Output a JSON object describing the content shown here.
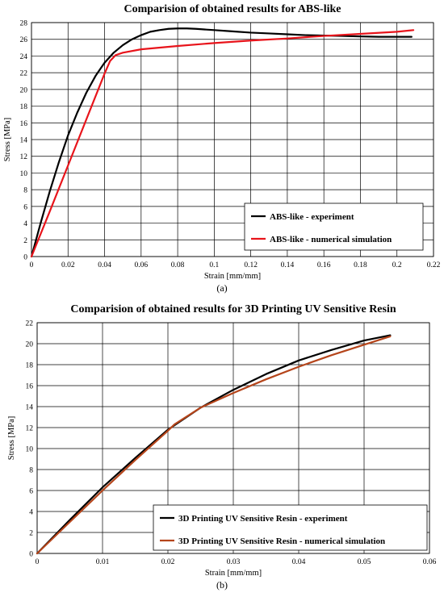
{
  "chart_data": [
    {
      "type": "line",
      "title": "Comparision of obtained results for ABS-like",
      "xlabel": "Strain [mm/mm]",
      "ylabel": "Stress [MPa]",
      "panel_label": "(a)",
      "xlim": [
        0,
        0.22
      ],
      "ylim": [
        0,
        28
      ],
      "xticks": [
        0,
        0.02,
        0.04,
        0.06,
        0.08,
        0.1,
        0.12,
        0.14,
        0.16,
        0.18,
        0.2,
        0.22
      ],
      "yticks": [
        0,
        2,
        4,
        6,
        8,
        10,
        12,
        14,
        16,
        18,
        20,
        22,
        24,
        26,
        28
      ],
      "xtick_labels": [
        "0",
        "0.02",
        "0.04",
        "0.06",
        "0.08",
        "0.1",
        "0.12",
        "0.14",
        "0.16",
        "0.18",
        "0.2",
        "0.22"
      ],
      "ytick_labels": [
        "0",
        "2",
        "4",
        "6",
        "8",
        "10",
        "12",
        "14",
        "16",
        "18",
        "20",
        "22",
        "24",
        "26",
        "28"
      ],
      "grid": true,
      "legend_position": "bottom-right",
      "series": [
        {
          "name": "ABS-like - experiment",
          "color": "#000000",
          "x": [
            0,
            0.005,
            0.01,
            0.015,
            0.02,
            0.025,
            0.03,
            0.035,
            0.04,
            0.045,
            0.05,
            0.055,
            0.06,
            0.065,
            0.07,
            0.075,
            0.08,
            0.085,
            0.09,
            0.1,
            0.11,
            0.12,
            0.13,
            0.14,
            0.15,
            0.16,
            0.17,
            0.18,
            0.19,
            0.2,
            0.208
          ],
          "y": [
            0,
            4.0,
            7.8,
            11.3,
            14.5,
            17.2,
            19.6,
            21.6,
            23.2,
            24.4,
            25.3,
            26.0,
            26.5,
            26.9,
            27.1,
            27.25,
            27.3,
            27.3,
            27.25,
            27.1,
            26.95,
            26.8,
            26.7,
            26.6,
            26.5,
            26.45,
            26.4,
            26.35,
            26.3,
            26.3,
            26.3
          ]
        },
        {
          "name": "ABS-like - numerical simulation",
          "color": "#e8141b",
          "x": [
            0,
            0.01,
            0.02,
            0.03,
            0.04,
            0.043,
            0.046,
            0.05,
            0.06,
            0.08,
            0.1,
            0.12,
            0.14,
            0.16,
            0.18,
            0.2,
            0.209
          ],
          "y": [
            0,
            5.4,
            10.9,
            16.4,
            21.9,
            23.4,
            24.1,
            24.4,
            24.8,
            25.2,
            25.55,
            25.85,
            26.1,
            26.4,
            26.65,
            26.9,
            27.1
          ]
        }
      ]
    },
    {
      "type": "line",
      "title": "Comparision of obtained results for 3D Printing UV Sensitive Resin",
      "xlabel": "Strain [mm/mm]",
      "ylabel": "Stress [MPa]",
      "panel_label": "(b)",
      "xlim": [
        0,
        0.06
      ],
      "ylim": [
        0,
        22
      ],
      "xticks": [
        0,
        0.01,
        0.02,
        0.03,
        0.04,
        0.05,
        0.06
      ],
      "yticks": [
        0,
        2,
        4,
        6,
        8,
        10,
        12,
        14,
        16,
        18,
        20,
        22
      ],
      "xtick_labels": [
        "0",
        "0.01",
        "0.02",
        "0.03",
        "0.04",
        "0.05",
        "0.06"
      ],
      "ytick_labels": [
        "0",
        "2",
        "4",
        "6",
        "8",
        "10",
        "12",
        "14",
        "16",
        "18",
        "20",
        "22"
      ],
      "grid": true,
      "legend_position": "bottom-right",
      "series": [
        {
          "name": "3D Printing UV Sensitive Resin - experiment",
          "color": "#000000",
          "x": [
            0,
            0.005,
            0.01,
            0.015,
            0.02,
            0.025,
            0.03,
            0.035,
            0.04,
            0.045,
            0.05,
            0.054
          ],
          "y": [
            0,
            3.2,
            6.3,
            9.1,
            11.8,
            13.9,
            15.6,
            17.1,
            18.4,
            19.4,
            20.3,
            20.8
          ]
        },
        {
          "name": "3D Printing UV Sensitive Resin - numerical simulation",
          "color": "#b5451b",
          "x": [
            0,
            0.005,
            0.01,
            0.015,
            0.02,
            0.021,
            0.025,
            0.03,
            0.035,
            0.04,
            0.045,
            0.05,
            0.054
          ],
          "y": [
            0,
            3.0,
            6.0,
            8.9,
            11.7,
            12.3,
            13.9,
            15.3,
            16.6,
            17.8,
            18.9,
            19.9,
            20.7
          ]
        }
      ]
    }
  ]
}
